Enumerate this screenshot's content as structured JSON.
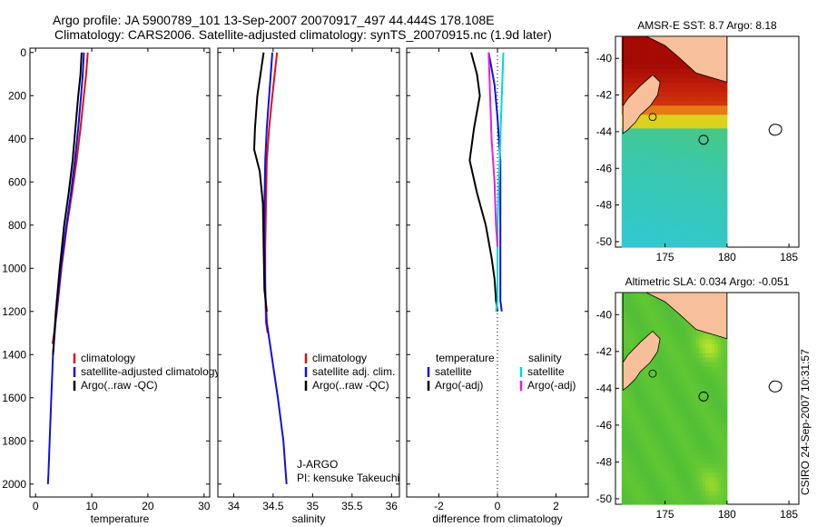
{
  "header": {
    "line1": "Argo profile: JA 5900789_101 13-Sep-2007 20070917_497 44.444S 178.108E",
    "line2": "Climatology: CARS2006. Satellite-adjusted climatology: synTS_20070915.nc (1.9d later)"
  },
  "side_label": "CSIRO 24-Sep-2007 10:31:57",
  "float_info": {
    "program": "J-ARGO",
    "pi": "PI: kensuke Takeuchi"
  },
  "colors": {
    "climatology": "#e01010",
    "satellite": "#1010e0",
    "argo": "#000000",
    "sat_salinity": "#00d8d8",
    "argo_salinity": "#e020e0",
    "land": "#f8c09a"
  },
  "chart_data": [
    {
      "id": "temperature",
      "type": "line",
      "xlabel": "temperature",
      "ylabel": "",
      "xlim": [
        -1,
        31
      ],
      "ylim": [
        2060,
        -20
      ],
      "y_inverted": true,
      "xticks": [
        0,
        10,
        20,
        30
      ],
      "yticks": [
        0,
        200,
        400,
        600,
        800,
        1000,
        1200,
        1400,
        1600,
        1800,
        2000
      ],
      "legend": [
        "climatology",
        "satellite-adjusted climatology",
        "Argo(..raw -QC)"
      ],
      "series": [
        {
          "name": "climatology",
          "color": "#e01010",
          "x": [
            9.3,
            9.0,
            8.6,
            8.0,
            7.3,
            6.5,
            5.6,
            4.6,
            3.8,
            3.3,
            3.0
          ],
          "y": [
            0,
            100,
            200,
            350,
            500,
            650,
            800,
            1000,
            1200,
            1300,
            1350
          ]
        },
        {
          "name": "satellite-adjusted climatology",
          "color": "#1010e0",
          "x": [
            8.6,
            8.4,
            8.1,
            7.6,
            7.0,
            6.3,
            5.5,
            4.5,
            3.7,
            3.1,
            2.8,
            2.5,
            2.3,
            2.2
          ],
          "y": [
            0,
            100,
            200,
            350,
            500,
            650,
            800,
            1000,
            1200,
            1400,
            1600,
            1800,
            1950,
            2000
          ]
        },
        {
          "name": "Argo(..raw -QC)",
          "color": "#000000",
          "x": [
            8.2,
            8.0,
            7.6,
            7.1,
            6.6,
            5.9,
            5.1,
            4.3,
            3.6,
            3.1
          ],
          "y": [
            0,
            100,
            200,
            350,
            500,
            650,
            800,
            1000,
            1200,
            1400
          ]
        }
      ]
    },
    {
      "id": "salinity",
      "type": "line",
      "xlabel": "salinity",
      "ylabel": "",
      "xlim": [
        33.8,
        36.1
      ],
      "ylim": [
        2060,
        -20
      ],
      "y_inverted": true,
      "xticks": [
        34,
        34.5,
        35,
        35.5,
        36
      ],
      "legend": [
        "climatology",
        "satellite adj. clim.",
        "Argo(..raw -QC)"
      ],
      "series": [
        {
          "name": "climatology",
          "color": "#e01010",
          "x": [
            34.55,
            34.52,
            34.49,
            34.45,
            34.42,
            34.41,
            34.4,
            34.4,
            34.41,
            34.43
          ],
          "y": [
            0,
            100,
            200,
            350,
            500,
            700,
            900,
            1100,
            1250,
            1300
          ]
        },
        {
          "name": "satellite adj. clim.",
          "color": "#1010e0",
          "x": [
            34.49,
            34.47,
            34.45,
            34.42,
            34.4,
            34.39,
            34.39,
            34.4,
            34.42,
            34.48,
            34.56,
            34.63,
            34.66,
            34.67
          ],
          "y": [
            0,
            100,
            200,
            350,
            500,
            700,
            900,
            1100,
            1250,
            1400,
            1600,
            1800,
            1950,
            2000
          ]
        },
        {
          "name": "Argo(..raw -QC)",
          "color": "#000000",
          "x": [
            34.38,
            34.34,
            34.3,
            34.27,
            34.26,
            34.33,
            34.37,
            34.38,
            34.39,
            34.42
          ],
          "y": [
            0,
            100,
            200,
            350,
            450,
            550,
            700,
            900,
            1100,
            1200
          ]
        }
      ]
    },
    {
      "id": "difference",
      "type": "line",
      "xlabel": "difference from climatology",
      "ylabel": "",
      "xlim": [
        -3.1,
        3.1
      ],
      "ylim": [
        2060,
        -20
      ],
      "y_inverted": true,
      "xticks": [
        -2,
        0,
        2
      ],
      "legend": [
        "temperature",
        "satellite",
        "Argo(-adj)",
        "salinity",
        "satellite",
        "Argo(-adj)"
      ],
      "series": [
        {
          "name": "temperature satellite",
          "color": "#1010e0",
          "x": [
            -0.3,
            -0.1,
            0.0,
            0.1,
            0.1,
            0.1,
            0.1,
            0.1,
            0.15
          ],
          "y": [
            0,
            150,
            300,
            500,
            700,
            900,
            1050,
            1150,
            1200
          ]
        },
        {
          "name": "temperature Argo(-adj)",
          "color": "#000000",
          "x": [
            -0.9,
            -0.7,
            -0.6,
            -0.8,
            -0.95,
            -0.7,
            -0.4,
            -0.2,
            -0.1,
            -0.05,
            0.0
          ],
          "y": [
            0,
            100,
            200,
            350,
            500,
            650,
            800,
            950,
            1050,
            1150,
            1200
          ]
        },
        {
          "name": "salinity satellite",
          "color": "#00d8d8",
          "x": [
            0.2,
            0.15,
            0.1,
            0.05,
            0.0,
            0.0,
            0.0,
            -0.05
          ],
          "y": [
            0,
            200,
            400,
            600,
            800,
            1000,
            1150,
            1200
          ]
        },
        {
          "name": "salinity Argo(-adj)",
          "color": "#e020e0",
          "x": [
            -0.3,
            -0.25,
            -0.2,
            -0.1,
            -0.05,
            0.0
          ],
          "y": [
            0,
            200,
            400,
            600,
            800,
            900
          ]
        }
      ]
    },
    {
      "id": "sst-map",
      "type": "heatmap",
      "title": "AMSR-E SST: 8.7 Argo: 8.18",
      "xlim": [
        171,
        185.8
      ],
      "ylim": [
        -50.3,
        -38.8
      ],
      "xticks": [
        175,
        180,
        185
      ],
      "yticks": [
        -40,
        -42,
        -44,
        -46,
        -48,
        -50
      ],
      "data_extent_lon": [
        171.5,
        180
      ]
    },
    {
      "id": "sla-map",
      "type": "heatmap",
      "title": "Altimetric SLA: 0.034 Argo: -0.051",
      "xlim": [
        171,
        185.8
      ],
      "ylim": [
        -50.3,
        -38.8
      ],
      "xticks": [
        175,
        180,
        185
      ],
      "yticks": [
        -40,
        -42,
        -44,
        -46,
        -48,
        -50
      ],
      "data_extent_lon": [
        171.5,
        180
      ]
    }
  ]
}
